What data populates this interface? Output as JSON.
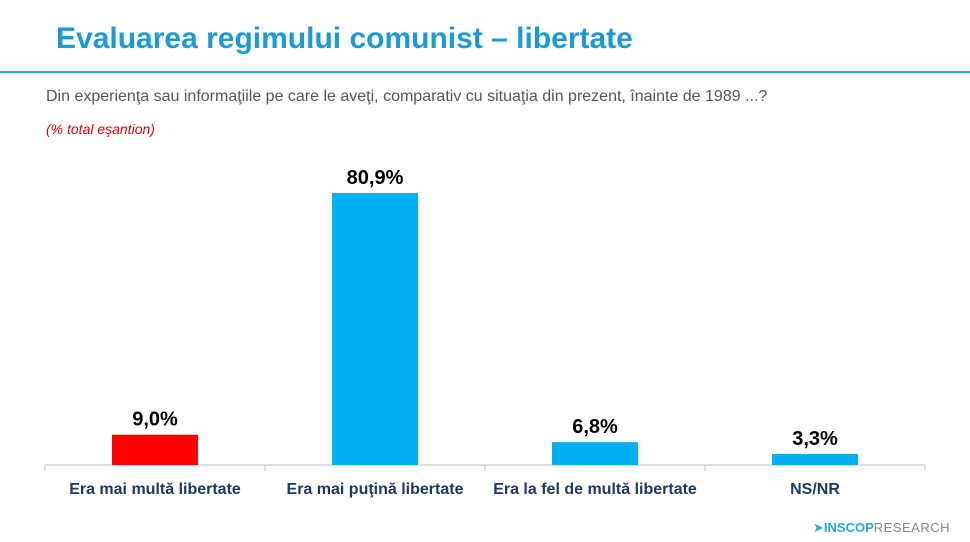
{
  "chart_data": {
    "type": "bar",
    "title": "Evaluarea regimului comunist – libertate",
    "subtitle": "Din experienţa sau informaţiile pe care le aveţi, comparativ cu situaţia din prezent, înainte de 1989 ...?",
    "note": "(% total eşantion)",
    "categories": [
      "Era mai multă libertate",
      "Era mai puţină libertate",
      "Era la fel de multă libertate",
      "NS/NR"
    ],
    "values": [
      9.0,
      80.9,
      6.8,
      3.3
    ],
    "value_labels": [
      "9,0%",
      "80,9%",
      "6,8%",
      "3,3%"
    ],
    "colors": [
      "#ff0000",
      "#00b0f0",
      "#00b0f0",
      "#00b0f0"
    ]
  },
  "logo": {
    "brand": "INSCOP",
    "suffix": "RESEARCH"
  }
}
